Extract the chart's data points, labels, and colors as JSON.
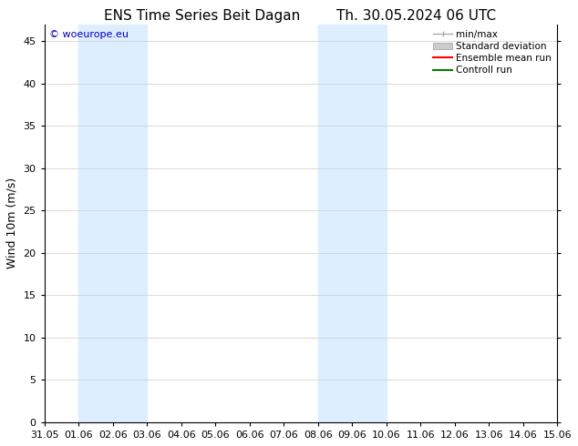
{
  "title_left": "ENS Time Series Beit Dagan",
  "title_right": "Th. 30.05.2024 06 UTC",
  "ylabel": "Wind 10m (m/s)",
  "watermark": "© woeurope.eu",
  "xmin": 0,
  "xmax": 15,
  "ymin": 0,
  "ymax": 47,
  "yticks": [
    0,
    5,
    10,
    15,
    20,
    25,
    30,
    35,
    40,
    45
  ],
  "xtick_labels": [
    "31.05",
    "01.06",
    "02.06",
    "03.06",
    "04.06",
    "05.06",
    "06.06",
    "07.06",
    "08.06",
    "09.06",
    "10.06",
    "11.06",
    "12.06",
    "13.06",
    "14.06",
    "15.06"
  ],
  "xtick_positions": [
    0,
    1,
    2,
    3,
    4,
    5,
    6,
    7,
    8,
    9,
    10,
    11,
    12,
    13,
    14,
    15
  ],
  "shaded_bands": [
    {
      "xstart": 1,
      "xend": 3,
      "color": "#ddeeff"
    },
    {
      "xstart": 8,
      "xend": 10,
      "color": "#ddeeff"
    },
    {
      "xstart": 15,
      "xend": 16,
      "color": "#ddeeff"
    }
  ],
  "background_color": "#ffffff",
  "plot_bg_color": "#ffffff",
  "grid_color": "#cccccc",
  "title_fontsize": 11,
  "axis_label_fontsize": 9,
  "tick_fontsize": 8,
  "watermark_color": "#0000cc",
  "watermark_fontsize": 8,
  "legend_items": [
    {
      "label": "min/max",
      "color": "#aaaaaa",
      "linewidth": 1.0,
      "linestyle": "-",
      "type": "minmax"
    },
    {
      "label": "Standard deviation",
      "color": "#cccccc",
      "linewidth": 8,
      "linestyle": "-",
      "type": "band"
    },
    {
      "label": "Ensemble mean run",
      "color": "#ff0000",
      "linewidth": 1.5,
      "linestyle": "-",
      "type": "line"
    },
    {
      "label": "Controll run",
      "color": "#008000",
      "linewidth": 1.5,
      "linestyle": "-",
      "type": "line"
    }
  ]
}
